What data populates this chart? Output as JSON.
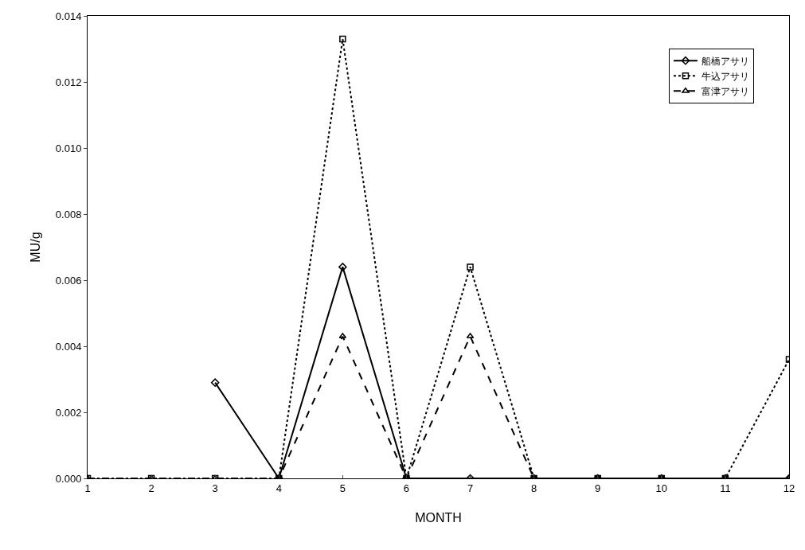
{
  "chart_data": {
    "type": "line",
    "xlabel": "MONTH",
    "ylabel": "MU/g",
    "x": [
      1,
      2,
      3,
      4,
      5,
      6,
      7,
      8,
      9,
      10,
      11,
      12
    ],
    "series": [
      {
        "name": "船橋アサリ",
        "color": "#000000",
        "marker": "diamond",
        "line_style": "solid",
        "values": [
          null,
          null,
          0.0029,
          0,
          0.0064,
          0,
          0,
          0,
          0,
          0,
          0,
          0
        ]
      },
      {
        "name": "牛込アサリ",
        "color": "#000000",
        "marker": "square",
        "line_style": "dotted",
        "values": [
          0,
          0,
          0,
          0,
          0.0133,
          0,
          0.0064,
          0,
          0,
          0,
          0,
          0.0036
        ]
      },
      {
        "name": "富津アサリ",
        "color": "#000000",
        "marker": "triangle",
        "line_style": "dashed",
        "values": [
          0,
          0,
          0,
          0,
          0.0043,
          0,
          0.0043,
          0,
          0,
          0,
          0,
          0
        ]
      }
    ],
    "xlim": [
      1,
      12
    ],
    "xticks": [
      1,
      2,
      3,
      4,
      5,
      6,
      7,
      8,
      9,
      10,
      11,
      12
    ],
    "ylim": [
      0,
      0.014
    ],
    "yticks": [
      {
        "value": 0,
        "label": "0.000"
      },
      {
        "value": 0.002,
        "label": "0.002"
      },
      {
        "value": 0.004,
        "label": "0.004"
      },
      {
        "value": 0.006,
        "label": "0.006"
      },
      {
        "value": 0.008,
        "label": "0.008"
      },
      {
        "value": 0.01,
        "label": "0.010"
      },
      {
        "value": 0.012,
        "label": "0.012"
      },
      {
        "value": 0.014,
        "label": "0.014"
      }
    ],
    "legend": "top right"
  }
}
